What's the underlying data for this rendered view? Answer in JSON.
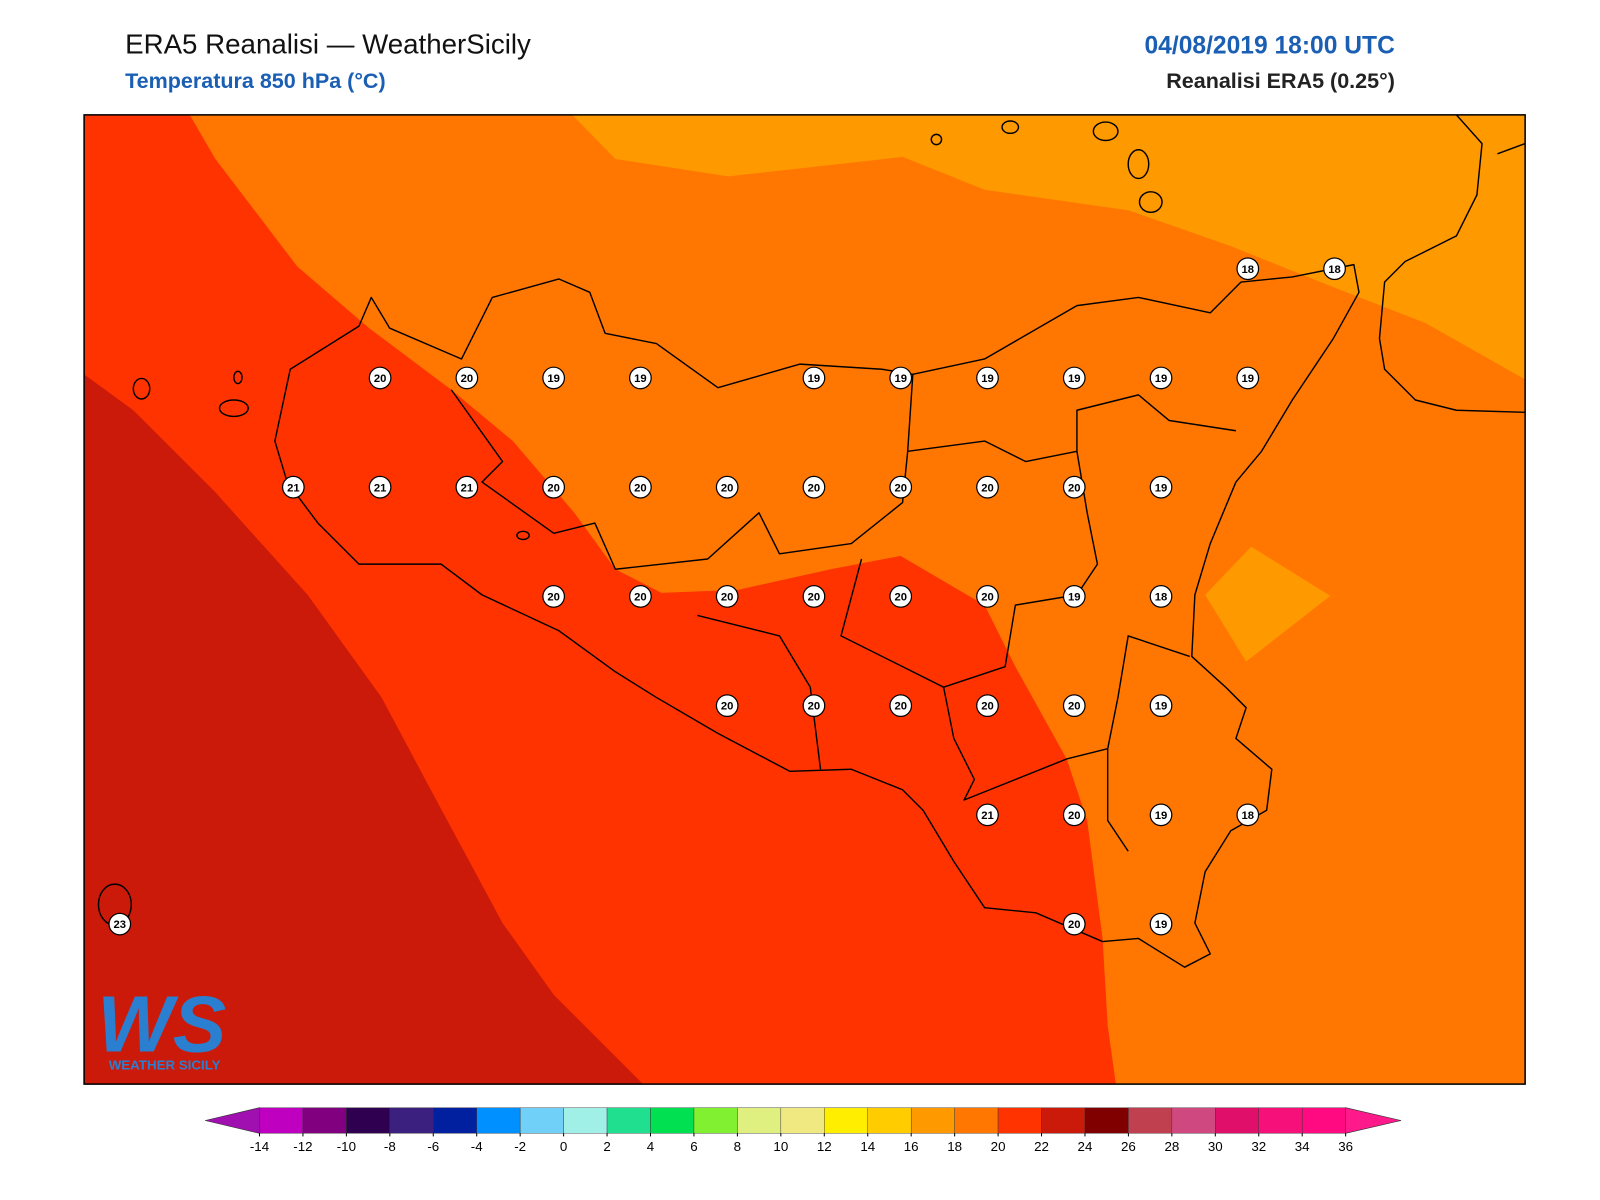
{
  "header": {
    "title": "ERA5 Reanalisi — WeatherSicily",
    "subtitle": "Temperatura 850 hPa (°C)",
    "date": "04/08/2019 18:00 UTC",
    "source": "Reanalisi ERA5 (0.25°)"
  },
  "logo": {
    "mark": "WS",
    "name": "WEATHER SICILY"
  },
  "stations": [
    18,
    18,
    20,
    20,
    19,
    19,
    19,
    19,
    19,
    19,
    19,
    19,
    21,
    21,
    21,
    20,
    20,
    20,
    20,
    20,
    20,
    20,
    19,
    20,
    20,
    20,
    20,
    20,
    20,
    19,
    18,
    20,
    20,
    20,
    20,
    20,
    19,
    21,
    20,
    19,
    18,
    23,
    20,
    19
  ],
  "colorbar": {
    "ticks": [
      -14,
      -12,
      -10,
      -8,
      -6,
      -4,
      -2,
      0,
      2,
      4,
      6,
      8,
      10,
      12,
      14,
      16,
      18,
      20,
      22,
      24,
      26,
      28,
      30,
      32,
      34,
      36
    ],
    "colors": [
      "#c000c0",
      "#800080",
      "#300050",
      "#3c2080",
      "#0020a0",
      "#0090ff",
      "#70d0f8",
      "#a0f0e8",
      "#20e090",
      "#00e050",
      "#80f030",
      "#e0f080",
      "#f0e880",
      "#ffee00",
      "#ffcc00",
      "#ff9900",
      "#ff7700",
      "#ff3300",
      "#cc1a0a",
      "#800000",
      "#c04050",
      "#d04880",
      "#e0106a",
      "#f5107a",
      "#ff0a80"
    ],
    "under": "#a010b0",
    "over": "#ff1a8c"
  }
}
